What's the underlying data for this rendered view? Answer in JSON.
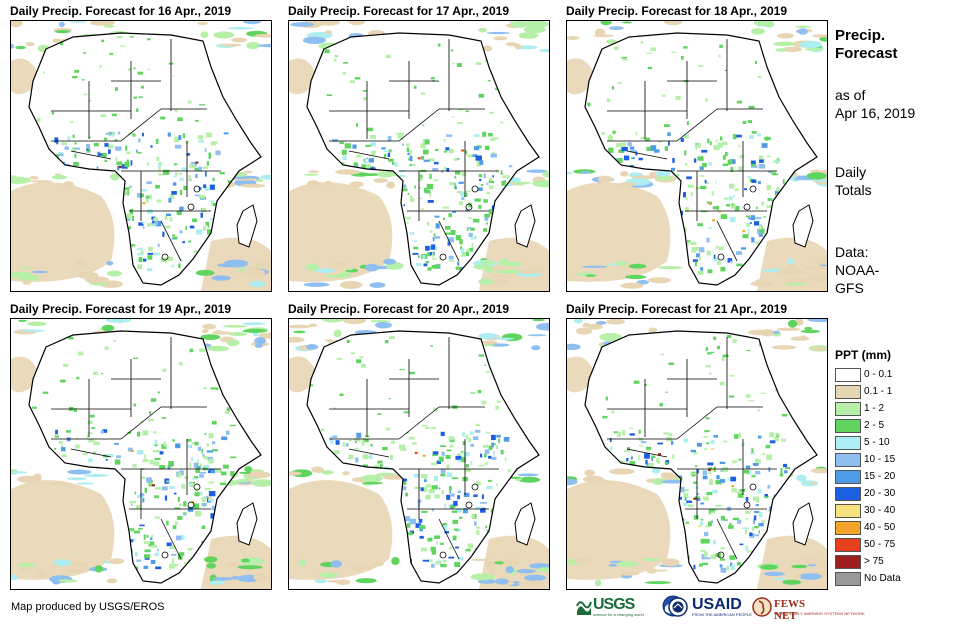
{
  "panels": [
    {
      "title": "Daily Precip. Forecast for 16 Apr., 2019"
    },
    {
      "title": "Daily Precip. Forecast for 17 Apr., 2019"
    },
    {
      "title": "Daily Precip. Forecast for 18 Apr., 2019"
    },
    {
      "title": "Daily Precip. Forecast for 19 Apr., 2019"
    },
    {
      "title": "Daily Precip. Forecast for 20 Apr., 2019"
    },
    {
      "title": "Daily Precip. Forecast for 21 Apr., 2019"
    }
  ],
  "sidebar": {
    "title_line1": "Precip.",
    "title_line2": "Forecast",
    "asof_line1": "as of",
    "asof_line2": "Apr 16, 2019",
    "totals_line1": "Daily",
    "totals_line2": "Totals",
    "data_line1": "Data:",
    "data_line2": "NOAA-",
    "data_line3": "GFS"
  },
  "legend": {
    "title": "PPT (mm)",
    "items": [
      {
        "label": "0 - 0.1",
        "color": "#ffffff"
      },
      {
        "label": "0.1 - 1",
        "color": "#e8d5b3"
      },
      {
        "label": "1 - 2",
        "color": "#b6f0a8"
      },
      {
        "label": "2 - 5",
        "color": "#5fd45f"
      },
      {
        "label": "5 - 10",
        "color": "#aeeef0"
      },
      {
        "label": "10 - 15",
        "color": "#8fbef0"
      },
      {
        "label": "15 - 20",
        "color": "#4f9be6"
      },
      {
        "label": "20 - 30",
        "color": "#1c5fe0"
      },
      {
        "label": "30 - 40",
        "color": "#f7e27a"
      },
      {
        "label": "40 - 50",
        "color": "#f2a52a"
      },
      {
        "label": "50 - 75",
        "color": "#e8401b"
      },
      {
        "label": "> 75",
        "color": "#a01d1d"
      },
      {
        "label": "No Data",
        "color": "#9a9a9a"
      }
    ]
  },
  "footer": {
    "credit": "Map produced by USGS/EROS",
    "logos": {
      "usgs": "USGS",
      "usgs_tagline": "science for a changing world",
      "usaid": "USAID",
      "usaid_tagline": "FROM THE AMERICAN PEOPLE",
      "fews": "FEWS NET",
      "fews_tagline": "FAMINE EARLY WARNING SYSTEMS NETWORK"
    }
  }
}
